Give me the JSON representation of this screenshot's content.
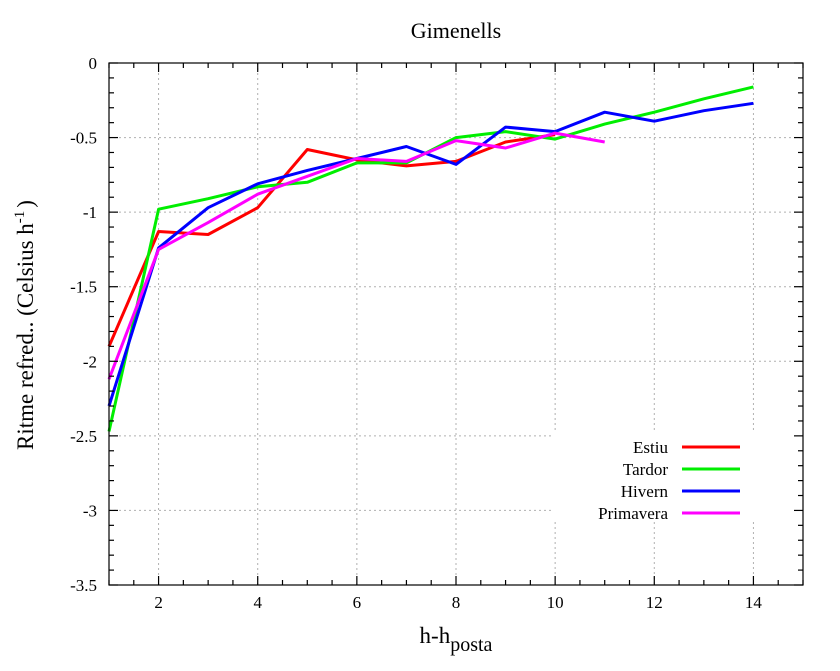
{
  "chart_data": {
    "type": "line",
    "title": "Gimenells",
    "ylabel": {
      "main": "Ritme refred.. (Celsius h",
      "sup": "-1",
      "close": ")"
    },
    "xlabel": {
      "main": "h-h",
      "sub": "posta"
    },
    "xlim": [
      1,
      15
    ],
    "ylim": [
      -3.5,
      0
    ],
    "xticks": [
      2,
      4,
      6,
      8,
      10,
      12,
      14
    ],
    "yticks": [
      0,
      -0.5,
      -1,
      -1.5,
      -2,
      -2.5,
      -3,
      -3.5
    ],
    "xtick_labels": [
      "2",
      "4",
      "6",
      "8",
      "10",
      "12",
      "14"
    ],
    "ytick_labels": [
      "0",
      "-0.5",
      "-1",
      "-1.5",
      "-2",
      "-2.5",
      "-3",
      "-3.5"
    ],
    "grid": true,
    "legend_position": "bottom-right",
    "series": [
      {
        "name": "Estiu",
        "color": "#ff0000",
        "x": [
          1,
          2,
          3,
          4,
          5,
          6,
          7,
          8,
          9,
          10
        ],
        "y": [
          -1.9,
          -1.13,
          -1.15,
          -0.97,
          -0.58,
          -0.65,
          -0.69,
          -0.66,
          -0.53,
          -0.48
        ]
      },
      {
        "name": "Tardor",
        "color": "#00ee00",
        "x": [
          1,
          2,
          3,
          4,
          5,
          6,
          7,
          8,
          9,
          10,
          11,
          12,
          13,
          14
        ],
        "y": [
          -2.47,
          -0.98,
          -0.91,
          -0.83,
          -0.8,
          -0.67,
          -0.67,
          -0.5,
          -0.46,
          -0.51,
          -0.41,
          -0.33,
          -0.24,
          -0.16
        ]
      },
      {
        "name": "Hivern",
        "color": "#0000ff",
        "x": [
          1,
          2,
          3,
          4,
          5,
          6,
          7,
          8,
          9,
          10,
          11,
          12,
          13,
          14
        ],
        "y": [
          -2.3,
          -1.24,
          -0.97,
          -0.81,
          -0.72,
          -0.64,
          -0.56,
          -0.68,
          -0.43,
          -0.46,
          -0.33,
          -0.39,
          -0.32,
          -0.27
        ]
      },
      {
        "name": "Primavera",
        "color": "#ff00ff",
        "x": [
          1,
          2,
          3,
          4,
          5,
          6,
          7,
          8,
          9,
          10,
          11
        ],
        "y": [
          -2.12,
          -1.25,
          -1.07,
          -0.88,
          -0.76,
          -0.64,
          -0.66,
          -0.52,
          -0.57,
          -0.47,
          -0.53
        ]
      }
    ]
  }
}
